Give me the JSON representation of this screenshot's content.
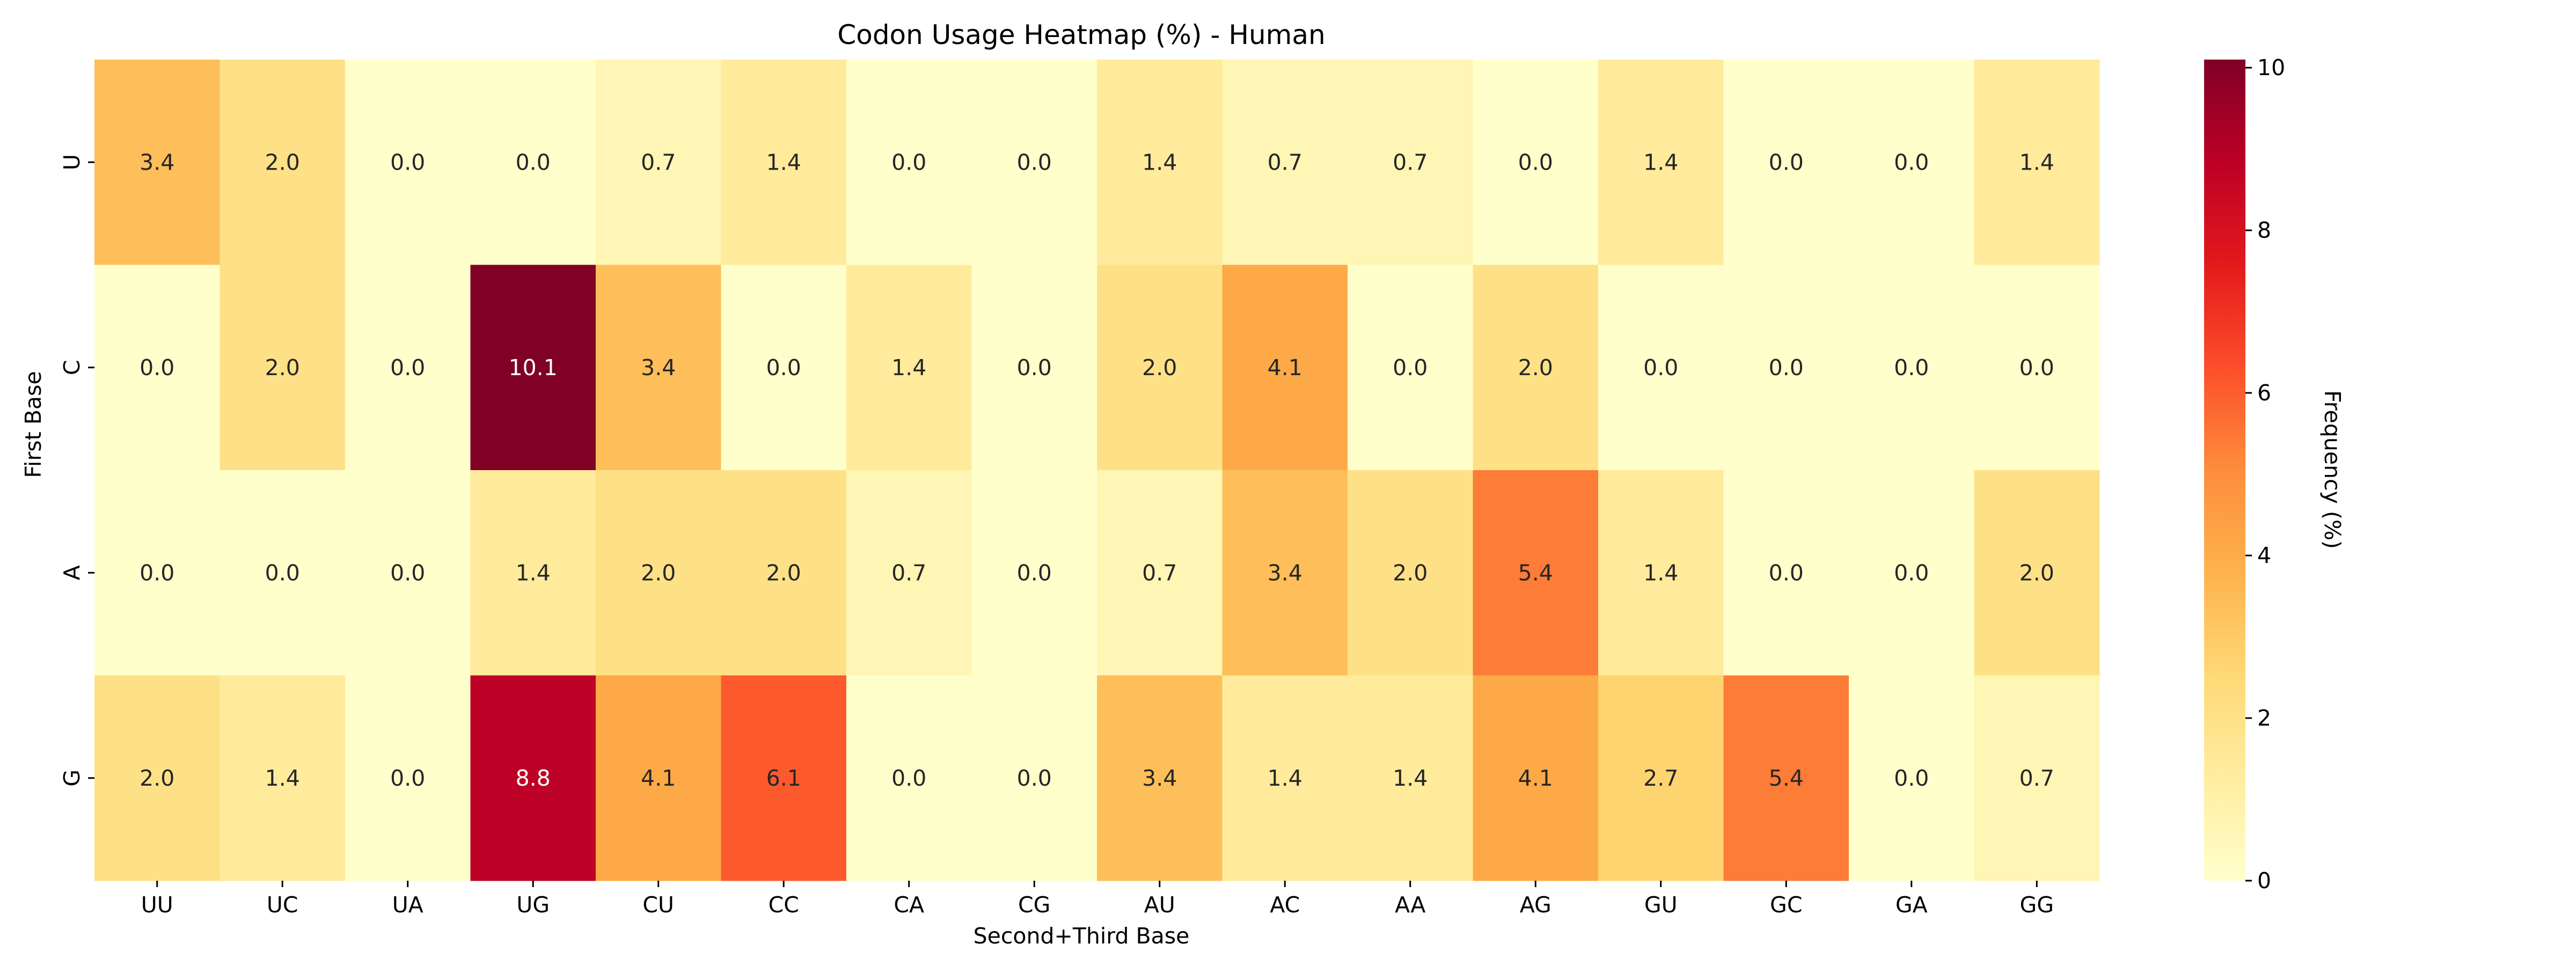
{
  "chart_data": {
    "type": "heatmap",
    "title": "Codon Usage Heatmap (%) - Human",
    "xlabel": "Second+Third Base",
    "ylabel": "First Base",
    "x_categories": [
      "UU",
      "UC",
      "UA",
      "UG",
      "CU",
      "CC",
      "CA",
      "CG",
      "AU",
      "AC",
      "AA",
      "AG",
      "GU",
      "GC",
      "GA",
      "GG"
    ],
    "y_categories": [
      "U",
      "C",
      "A",
      "G"
    ],
    "values": [
      [
        3.4,
        2.0,
        0.0,
        0.0,
        0.7,
        1.4,
        0.0,
        0.0,
        1.4,
        0.7,
        0.7,
        0.0,
        1.4,
        0.0,
        0.0,
        1.4
      ],
      [
        0.0,
        2.0,
        0.0,
        10.1,
        3.4,
        0.0,
        1.4,
        0.0,
        2.0,
        4.1,
        0.0,
        2.0,
        0.0,
        0.0,
        0.0,
        0.0
      ],
      [
        0.0,
        0.0,
        0.0,
        1.4,
        2.0,
        2.0,
        0.7,
        0.0,
        0.7,
        3.4,
        2.0,
        5.4,
        1.4,
        0.0,
        0.0,
        2.0
      ],
      [
        2.0,
        1.4,
        0.0,
        8.8,
        4.1,
        6.1,
        0.0,
        0.0,
        3.4,
        1.4,
        1.4,
        4.1,
        2.7,
        5.4,
        0.0,
        0.7
      ]
    ],
    "value_format": "0.0",
    "colormap": "YlOrRd",
    "color_range": [
      0,
      10.1
    ],
    "colorbar": {
      "label": "Frequency (%)",
      "ticks": [
        0,
        2,
        4,
        6,
        8,
        10
      ],
      "tick_labels": [
        "0",
        "2",
        "4",
        "6",
        "8",
        "10"
      ]
    },
    "grid": false,
    "legend": "none"
  }
}
